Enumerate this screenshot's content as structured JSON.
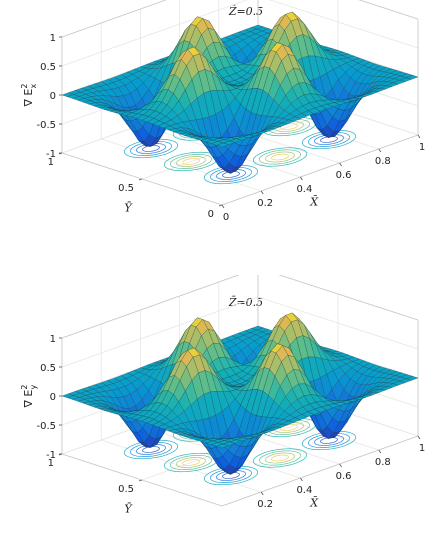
{
  "chart_data": [
    {
      "type": "surface3d",
      "title": "Z̄=0.5",
      "xlabel": "X̄",
      "ylabel": "Ȳ",
      "zlabel": "∇ E²ₓ",
      "zlabel_base": "∇ E",
      "zlabel_sup": "2",
      "zlabel_sub": "x",
      "xlim": [
        0,
        1
      ],
      "ylim": [
        0,
        1
      ],
      "zlim": [
        -1,
        1
      ],
      "xticks": [
        "0",
        "0.2",
        "0.4",
        "0.6",
        "0.8",
        "1"
      ],
      "yticks": [
        "0",
        "0.5",
        "1"
      ],
      "zticks": [
        "-1",
        "-0.5",
        "0",
        "0.5",
        "1"
      ],
      "function": "peaks at X=0.25,0.75 and Y=0.5; troughs at X=0.5 and Y=0.25,0.75 (sin(2πX)cos(2πY) pattern)",
      "peaks": [
        {
          "x": 0.25,
          "y": 0.5,
          "z": 1
        },
        {
          "x": 0.75,
          "y": 0.5,
          "z": 1
        },
        {
          "x": 0.5,
          "y": 0.25,
          "z": 1
        },
        {
          "x": 0.5,
          "y": 0.75,
          "z": 1
        }
      ],
      "troughs": [
        {
          "x": 0.25,
          "y": 0.25,
          "z": -1
        },
        {
          "x": 0.75,
          "y": 0.75,
          "z": -1
        },
        {
          "x": 0.25,
          "y": 0.75,
          "z": -1
        },
        {
          "x": 0.75,
          "y": 0.25,
          "z": -1
        }
      ],
      "grid": true,
      "colormap": "parula",
      "contours_on_floor": true
    },
    {
      "type": "surface3d",
      "title": "Z̄=0.5",
      "xlabel": "X̄",
      "ylabel": "Ȳ",
      "zlabel": "∇ E²ᵧ",
      "zlabel_base": "∇ E",
      "zlabel_sup": "2",
      "zlabel_sub": "y",
      "xlim": [
        0,
        1
      ],
      "ylim": [
        0,
        1
      ],
      "zlim": [
        -1,
        1
      ],
      "xticks": [
        "0.2",
        "0.4",
        "0.6",
        "0.8",
        "1"
      ],
      "yticks": [
        "0.5",
        "1"
      ],
      "zticks": [
        "-1",
        "-0.5",
        "0",
        "0.5",
        "1"
      ],
      "function": "peaks at X=0.5 and Y=0.25,0.75 plus X=0.25,0.75 at Y=0.5; troughs at corners of inner square",
      "peaks": [
        {
          "x": 0.5,
          "y": 0.25,
          "z": 1
        },
        {
          "x": 0.5,
          "y": 0.75,
          "z": 1
        },
        {
          "x": 0.25,
          "y": 0.5,
          "z": 1
        },
        {
          "x": 0.75,
          "y": 0.5,
          "z": 1
        }
      ],
      "troughs": [
        {
          "x": 0.25,
          "y": 0.25,
          "z": -1
        },
        {
          "x": 0.75,
          "y": 0.75,
          "z": -1
        },
        {
          "x": 0.25,
          "y": 0.75,
          "z": -1
        },
        {
          "x": 0.75,
          "y": 0.25,
          "z": -1
        }
      ],
      "grid": true,
      "colormap": "parula",
      "contours_on_floor": true
    }
  ]
}
